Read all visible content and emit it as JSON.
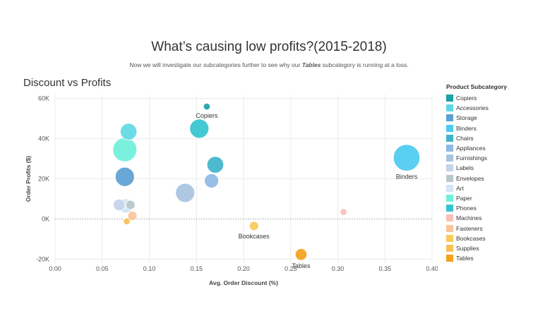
{
  "header": {
    "title": "What’s causing low profits?(2015-2018)",
    "subtitle_pre": "Now we will investigate our subcategories further to see why our ",
    "subtitle_em": "Tables",
    "subtitle_post": " subcategory is running at a loss."
  },
  "chart_data": {
    "type": "scatter",
    "title": "Discount vs Profits",
    "xlabel": "Avg. Order Discount (%)",
    "ylabel": "Order Profits ($)",
    "xlim": [
      0,
      0.4
    ],
    "ylim": [
      -22000,
      62000
    ],
    "x_ticks": [
      "0.00",
      "0.05",
      "0.10",
      "0.15",
      "0.20",
      "0.25",
      "0.30",
      "0.35",
      "0.40"
    ],
    "y_ticks": [
      {
        "value": -20000,
        "label": "-20K"
      },
      {
        "value": 0,
        "label": "0K"
      },
      {
        "value": 20000,
        "label": "20K"
      },
      {
        "value": 40000,
        "label": "40K"
      },
      {
        "value": 60000,
        "label": "60K"
      }
    ],
    "grid": true,
    "zero_line": "dotted",
    "legend_position": "right",
    "legend_title": "Product Subcategory",
    "points": [
      {
        "name": "Copiers",
        "x": 0.161,
        "y": 56000,
        "size": 1,
        "color": "#1aa3a8",
        "label": "Copiers"
      },
      {
        "name": "Accessories",
        "x": 0.078,
        "y": 43500,
        "size": 5,
        "color": "#5fd8e4"
      },
      {
        "name": "Storage",
        "x": 0.074,
        "y": 21000,
        "size": 6,
        "color": "#5ba0d3"
      },
      {
        "name": "Binders",
        "x": 0.373,
        "y": 30500,
        "size": 9,
        "color": "#4dcbf0",
        "label": "Binders"
      },
      {
        "name": "Chairs",
        "x": 0.17,
        "y": 27000,
        "size": 5,
        "color": "#3fb4cc"
      },
      {
        "name": "Appliances",
        "x": 0.166,
        "y": 19000,
        "size": 4,
        "color": "#8fb8e4"
      },
      {
        "name": "Furnishings",
        "x": 0.138,
        "y": 13000,
        "size": 6,
        "color": "#a8c3e0"
      },
      {
        "name": "Labels",
        "x": 0.068,
        "y": 7000,
        "size": 3,
        "color": "#c3d4eb"
      },
      {
        "name": "Envelopes",
        "x": 0.08,
        "y": 7000,
        "size": 2,
        "color": "#b8c8c8"
      },
      {
        "name": "Art",
        "x": 0.075,
        "y": 6500,
        "size": 4,
        "color": "#d4e4f4"
      },
      {
        "name": "Paper",
        "x": 0.074,
        "y": 34500,
        "size": 8,
        "color": "#6ff0da"
      },
      {
        "name": "Phones",
        "x": 0.153,
        "y": 45000,
        "size": 6,
        "color": "#34c4d0"
      },
      {
        "name": "Machines",
        "x": 0.306,
        "y": 3500,
        "size": 1,
        "color": "#f8c0b6"
      },
      {
        "name": "Fasteners",
        "x": 0.082,
        "y": 1500,
        "size": 2,
        "color": "#fbc49a"
      },
      {
        "name": "Bookcases",
        "x": 0.211,
        "y": -3500,
        "size": 2,
        "color": "#f6cb5c",
        "label": "Bookcases"
      },
      {
        "name": "Supplies",
        "x": 0.076,
        "y": -1200,
        "size": 1,
        "color": "#f9bf56"
      },
      {
        "name": "Tables",
        "x": 0.261,
        "y": -17700,
        "size": 3,
        "color": "#f5a11c",
        "label": "Tables"
      }
    ]
  },
  "legend": {
    "title": "Product Subcategory",
    "items": [
      {
        "label": "Copiers",
        "color": "#1aa3a8"
      },
      {
        "label": "Accessories",
        "color": "#5fd8e4"
      },
      {
        "label": "Storage",
        "color": "#5ba0d3"
      },
      {
        "label": "Binders",
        "color": "#4dcbf0"
      },
      {
        "label": "Chairs",
        "color": "#3fb4cc"
      },
      {
        "label": "Appliances",
        "color": "#8fb8e4"
      },
      {
        "label": "Furnishings",
        "color": "#a8c3e0"
      },
      {
        "label": "Labels",
        "color": "#c3d4eb"
      },
      {
        "label": "Envelopes",
        "color": "#b8c8c8"
      },
      {
        "label": "Art",
        "color": "#d4e4f4"
      },
      {
        "label": "Paper",
        "color": "#6ff0da"
      },
      {
        "label": "Phones",
        "color": "#34c4d0"
      },
      {
        "label": "Machines",
        "color": "#f8c0b6"
      },
      {
        "label": "Fasteners",
        "color": "#fbc49a"
      },
      {
        "label": "Bookcases",
        "color": "#f6cb5c"
      },
      {
        "label": "Supplies",
        "color": "#f9bf56"
      },
      {
        "label": "Tables",
        "color": "#f5a11c"
      }
    ]
  }
}
